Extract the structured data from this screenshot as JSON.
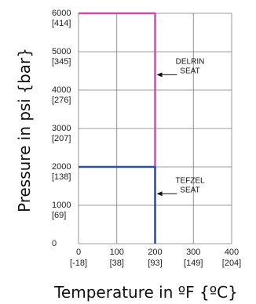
{
  "chart_data": {
    "type": "line",
    "title": "",
    "xlabel": "Temperature in ºF {ºC}",
    "ylabel": "Pressure in psi {bar}",
    "xlim": [
      0,
      400
    ],
    "ylim": [
      0,
      6000
    ],
    "grid": true,
    "x_ticks": [
      {
        "value": 0,
        "label": "0",
        "sub": "[-18]"
      },
      {
        "value": 100,
        "label": "100",
        "sub": "[38]"
      },
      {
        "value": 200,
        "label": "200",
        "sub": "[93]"
      },
      {
        "value": 300,
        "label": "300",
        "sub": "[149]"
      },
      {
        "value": 400,
        "label": "400",
        "sub": "[204]"
      }
    ],
    "y_ticks": [
      {
        "value": 0,
        "label": "0",
        "sub": ""
      },
      {
        "value": 1000,
        "label": "1000",
        "sub": "[69]"
      },
      {
        "value": 2000,
        "label": "2000",
        "sub": "[138]"
      },
      {
        "value": 3000,
        "label": "3000",
        "sub": "[207]"
      },
      {
        "value": 4000,
        "label": "4000",
        "sub": "[276]"
      },
      {
        "value": 5000,
        "label": "5000",
        "sub": "[345]"
      },
      {
        "value": 6000,
        "label": "6000",
        "sub": "[414]"
      }
    ],
    "series": [
      {
        "color": "#c050a0",
        "x": [
          0,
          200,
          200
        ],
        "y": [
          6000,
          6000,
          0
        ]
      },
      {
        "color": "#2e4f9e",
        "x": [
          0,
          200,
          200
        ],
        "y": [
          2000,
          2000,
          0
        ]
      }
    ],
    "annotations": [
      {
        "lines": [
          "DELRIN",
          "SEAT"
        ],
        "arrow_to": [
          200,
          4400
        ]
      },
      {
        "lines": [
          "TEFZEL",
          "SEAT"
        ],
        "arrow_to": [
          200,
          1300
        ]
      }
    ]
  }
}
